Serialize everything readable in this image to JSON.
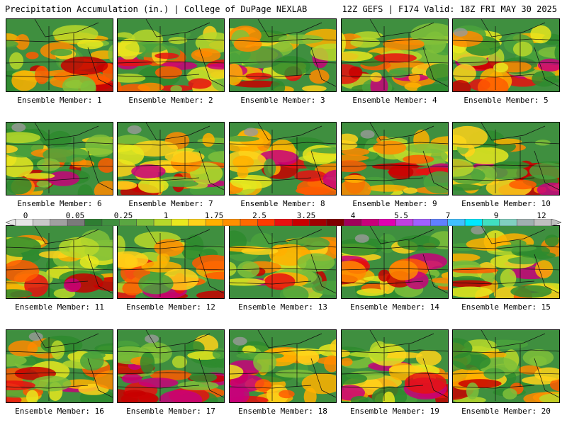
{
  "header": {
    "left_title": "Precipitation Accumulation (in.) | College of DuPage NEXLAB",
    "right_title": "12Z GEFS | F174 Valid: 18Z FRI MAY 30 2025"
  },
  "colorbar": {
    "labels": [
      "0",
      "0.05",
      "0.25",
      "1",
      "1.75",
      "2.5",
      "3.25",
      "4",
      "5.5",
      "7",
      "9",
      "12"
    ],
    "colors": [
      "#e6e6e6",
      "#c8c8c8",
      "#a0a0a0",
      "#7a7a7a",
      "#2e7d32",
      "#3f8f3f",
      "#5aa642",
      "#7fbf3a",
      "#b8d82a",
      "#e8e81e",
      "#ffd21a",
      "#ffb000",
      "#ff9000",
      "#ff6a00",
      "#ff3c00",
      "#e81010",
      "#c80000",
      "#a00000",
      "#800000",
      "#a0005a",
      "#c8007a",
      "#e000b0",
      "#c040e0",
      "#a060ff",
      "#6080ff",
      "#40c0ff",
      "#00e8ff",
      "#40e0c0",
      "#80d0c0",
      "#a0b0b0",
      "#c0c0c0"
    ]
  },
  "members": [
    {
      "label": "Ensemble Member: 1"
    },
    {
      "label": "Ensemble Member: 2"
    },
    {
      "label": "Ensemble Member: 3"
    },
    {
      "label": "Ensemble Member: 4"
    },
    {
      "label": "Ensemble Member: 5"
    },
    {
      "label": "Ensemble Member: 6"
    },
    {
      "label": "Ensemble Member: 7"
    },
    {
      "label": "Ensemble Member: 8"
    },
    {
      "label": "Ensemble Member: 9"
    },
    {
      "label": "Ensemble Member: 10"
    },
    {
      "label": "Ensemble Member: 11"
    },
    {
      "label": "Ensemble Member: 12"
    },
    {
      "label": "Ensemble Member: 13"
    },
    {
      "label": "Ensemble Member: 14"
    },
    {
      "label": "Ensemble Member: 15"
    },
    {
      "label": "Ensemble Member: 16"
    },
    {
      "label": "Ensemble Member: 17"
    },
    {
      "label": "Ensemble Member: 18"
    },
    {
      "label": "Ensemble Member: 19"
    },
    {
      "label": "Ensemble Member: 20"
    }
  ]
}
